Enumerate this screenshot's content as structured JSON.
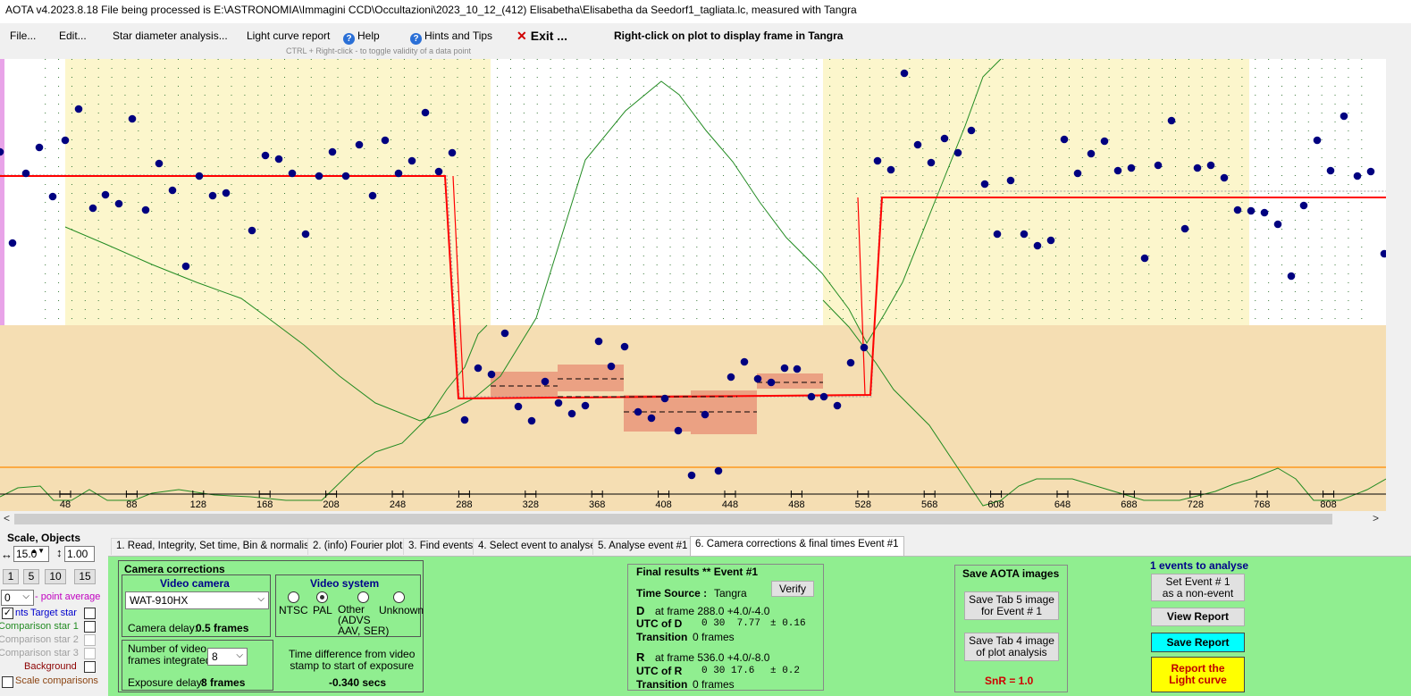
{
  "window": {
    "title": "AOTA v4.2023.8.18    File being processed is E:\\ASTRONOMIA\\Immagini CCD\\Occultazioni\\2023_10_12_(412) Elisabetha\\Elisabetha da Seedorf1_tagliata.lc, measured with Tangra"
  },
  "menu": {
    "file": "File...",
    "edit": "Edit...",
    "star_diameter": "Star diameter analysis...",
    "light_curve_report": "Light curve report",
    "help": "Help",
    "hints": "Hints and Tips",
    "exit": "Exit ...",
    "right_click_hint": "Right-click on plot to display frame in Tangra",
    "ctrl_hint": "CTRL + Right-click  -  to toggle validity of a data point",
    "help_icon": "help-circle-icon",
    "exit_icon": "close-icon"
  },
  "plot": {
    "x_ticks": [
      "48",
      "88",
      "128",
      "168",
      "208",
      "248",
      "288",
      "328",
      "368",
      "408",
      "448",
      "488",
      "528",
      "568",
      "608",
      "648",
      "688",
      "728",
      "768",
      "808"
    ],
    "colors": {
      "event_line": "#ff0000",
      "data_point": "#000080",
      "trend_line": "#228b22",
      "baseline_band": "#fcf6cc",
      "lower_band": "#f5deb3",
      "error_box": "#e9967a",
      "orange_line": "#ff8c00"
    }
  },
  "left_panel": {
    "scale_objects": "Scale,  Objects",
    "h_scale": "15.0",
    "v_scale": "1.00",
    "quick_buttons": [
      "1",
      "5",
      "10",
      "15"
    ],
    "point_average_value": "0",
    "point_average_label": "- point average",
    "pts_label": "nts",
    "target_star": "Target star",
    "comparison1": "Comparison star 1",
    "comparison2": "Comparison star 2",
    "comparison3": "Comparison star 3",
    "background": "Background",
    "scale_comparisons": "Scale comparisons"
  },
  "tabs": [
    "1.  Read, Integrity, Set time, Bin & normalise",
    "2. (info)  Fourier plot",
    "3. Find events",
    "4. Select event to analyse",
    "5. Analyse event #1",
    "6. Camera corrections & final times Event #1"
  ],
  "camera": {
    "section_title": "Camera corrections",
    "video_camera_title": "Video camera",
    "camera_model": "WAT-910HX",
    "camera_delay_label": "Camera delay:",
    "camera_delay_value": "0.5 frames",
    "video_system_title": "Video system",
    "vs_ntsc": "NTSC",
    "vs_pal": "PAL",
    "vs_other": "Other\n(ADVS\nAAV, SER)",
    "vs_unknown": "Unknown",
    "frames_integrated_label": "Number of video\nframes integrated",
    "frames_integrated_value": "8",
    "exposure_delay_label": "Exposure delay:",
    "exposure_delay_value": "8 frames",
    "time_diff_label": "Time difference from video\nstamp to start of exposure",
    "time_diff_value": "-0.340 secs"
  },
  "final": {
    "title": "Final results  **  Event #1",
    "verify": "Verify",
    "time_source_label": "Time Source :",
    "time_source_value": "Tangra",
    "d_label": "D",
    "d_frame": "at frame 288.0  +4.0/-4.0",
    "utc_d_label": "UTC of D",
    "utc_d_value": "0 30  7.77",
    "utc_d_err": "± 0.16",
    "transition_label": "Transition",
    "d_transition": "0 frames",
    "r_label": "R",
    "r_frame": "at frame 536.0  +4.0/-8.0",
    "utc_r_label": "UTC of R",
    "utc_r_value": "0 30 17.6",
    "utc_r_err": "± 0.2",
    "r_transition": "0 frames"
  },
  "save_images": {
    "title": "Save AOTA images",
    "tab5": "Save Tab 5 image\nfor Event # 1",
    "tab4": "Save Tab 4 image\nof plot analysis",
    "snr": "SnR = 1.0"
  },
  "report": {
    "events_to_analyse": "1  events to analyse",
    "set_non_event": "Set Event # 1\nas a non-event",
    "view_report": "View Report",
    "save_report": "Save Report",
    "report_light_curve": "Report the\nLight curve"
  }
}
